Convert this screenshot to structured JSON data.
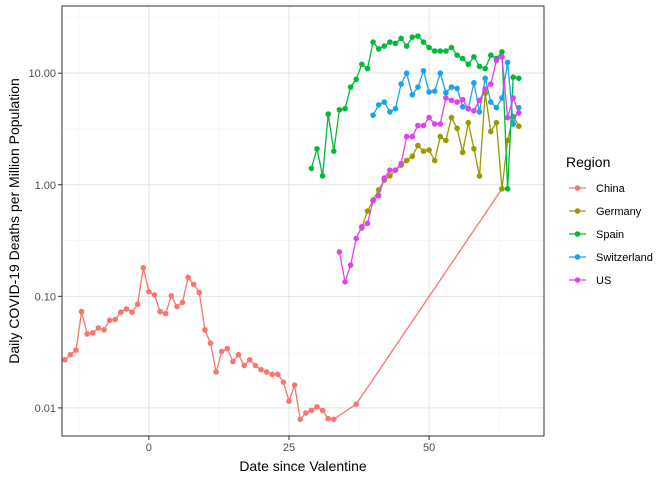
{
  "chart_data": {
    "type": "line",
    "xlabel": "Date since Valentine",
    "ylabel": "Daily COVID-19 Deaths per Million Population",
    "x_ticks": [
      0,
      25,
      50
    ],
    "y_scale": "log10",
    "y_ticks": [
      {
        "value": 0.01,
        "label": "0.01"
      },
      {
        "value": 0.1,
        "label": "0.10"
      },
      {
        "value": 1,
        "label": "1.00"
      },
      {
        "value": 10,
        "label": "10.00"
      }
    ],
    "xlim": [
      -15.5,
      70.5
    ],
    "ylim": [
      0.0056,
      40
    ],
    "grid": true,
    "legend": {
      "title": "Region",
      "position": "right"
    },
    "series": [
      {
        "name": "China",
        "color": "#F8766D",
        "x": [
          -15,
          -14,
          -13,
          -12,
          -11,
          -10,
          -9,
          -8,
          -7,
          -6,
          -5,
          -4,
          -3,
          -2,
          -1,
          0,
          1,
          2,
          3,
          4,
          5,
          6,
          7,
          8,
          9,
          10,
          11,
          12,
          13,
          14,
          15,
          16,
          17,
          18,
          19,
          20,
          21,
          22,
          23,
          24,
          25,
          26,
          27,
          28,
          29,
          30,
          31,
          32,
          33,
          37,
          63
        ],
        "y": [
          0.027,
          0.03,
          0.033,
          0.073,
          0.046,
          0.047,
          0.052,
          0.05,
          0.061,
          0.062,
          0.072,
          0.077,
          0.072,
          0.085,
          0.18,
          0.11,
          0.103,
          0.073,
          0.07,
          0.101,
          0.081,
          0.088,
          0.148,
          0.128,
          0.108,
          0.05,
          0.038,
          0.021,
          0.032,
          0.034,
          0.026,
          0.03,
          0.024,
          0.027,
          0.024,
          0.022,
          0.021,
          0.02,
          0.02,
          0.017,
          0.0115,
          0.016,
          0.0079,
          0.009,
          0.0095,
          0.0102,
          0.0095,
          0.008,
          0.0079,
          0.0108,
          0.92
        ]
      },
      {
        "name": "Germany",
        "color": "#999900",
        "x": [
          38,
          39,
          40,
          41,
          42,
          43,
          44,
          45,
          46,
          47,
          48,
          49,
          50,
          51,
          52,
          53,
          54,
          55,
          56,
          57,
          58,
          59,
          60,
          61,
          62,
          63,
          64,
          65,
          66
        ],
        "y": [
          0.41,
          0.58,
          0.73,
          0.9,
          1.1,
          1.2,
          1.35,
          1.5,
          1.65,
          1.8,
          2.25,
          2.0,
          2.05,
          1.65,
          2.7,
          2.5,
          4.0,
          3.2,
          1.95,
          3.6,
          2.1,
          1.2,
          6.6,
          3.0,
          3.6,
          0.92,
          2.5,
          4.1,
          3.35
        ]
      },
      {
        "name": "Spain",
        "color": "#00BA38",
        "x": [
          29,
          30,
          31,
          32,
          33,
          34,
          35,
          36,
          37,
          38,
          39,
          40,
          41,
          42,
          43,
          44,
          45,
          46,
          47,
          48,
          49,
          50,
          51,
          52,
          53,
          54,
          55,
          56,
          57,
          58,
          59,
          60,
          61,
          62,
          63,
          64,
          65,
          66
        ],
        "y": [
          1.4,
          2.1,
          1.2,
          4.3,
          2.0,
          4.7,
          4.8,
          7.5,
          8.8,
          12.0,
          11.0,
          19.0,
          16.5,
          17.5,
          19.0,
          18.5,
          20.5,
          17.5,
          21.0,
          21.5,
          19.0,
          17.0,
          15.8,
          15.8,
          15.8,
          17.0,
          14.5,
          13.5,
          12.0,
          14.0,
          11.5,
          11.0,
          14.5,
          13.5,
          15.5,
          0.92,
          9.2,
          9.0
        ]
      },
      {
        "name": "Switzerland",
        "color": "#1AA3E8",
        "x": [
          40,
          41,
          42,
          43,
          44,
          45,
          46,
          47,
          48,
          49,
          50,
          51,
          52,
          53,
          54,
          55,
          56,
          57,
          58,
          59,
          60,
          61,
          62,
          63,
          64,
          65,
          66
        ],
        "y": [
          4.2,
          5.2,
          5.5,
          4.5,
          4.8,
          8.0,
          10.0,
          6.4,
          7.5,
          10.5,
          6.8,
          6.9,
          10.0,
          6.7,
          7.5,
          7.3,
          5.0,
          4.8,
          8.2,
          4.5,
          9.0,
          5.5,
          4.9,
          6.0,
          12.5,
          3.5,
          4.9
        ]
      },
      {
        "name": "US",
        "color": "#E042F0",
        "x": [
          34,
          35,
          36,
          37,
          38,
          39,
          40,
          41,
          42,
          43,
          44,
          45,
          46,
          47,
          48,
          49,
          50,
          51,
          52,
          53,
          54,
          55,
          56,
          57,
          58,
          59,
          60,
          61,
          62,
          63,
          64,
          65,
          66
        ],
        "y": [
          0.25,
          0.135,
          0.19,
          0.33,
          0.42,
          0.45,
          0.72,
          0.8,
          1.15,
          1.35,
          1.35,
          1.55,
          2.7,
          2.7,
          3.4,
          3.4,
          4.0,
          3.5,
          3.5,
          6.0,
          5.7,
          5.5,
          5.8,
          4.8,
          4.6,
          5.7,
          7.2,
          8.0,
          13.0,
          14.0,
          4.0,
          6.0,
          4.4
        ]
      }
    ]
  }
}
